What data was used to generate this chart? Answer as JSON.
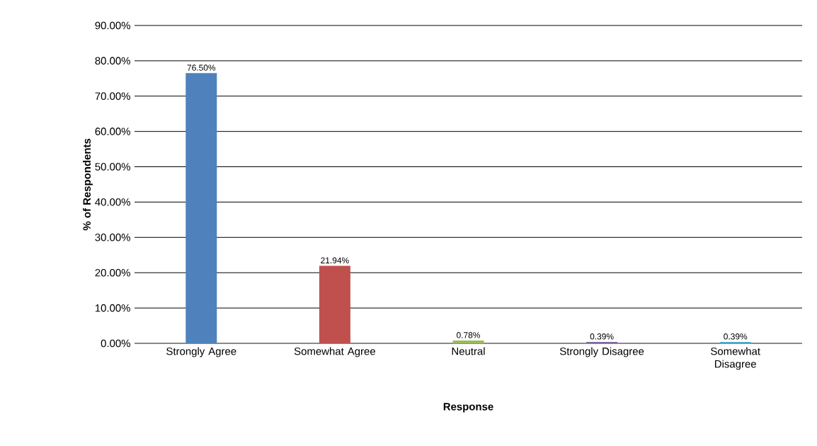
{
  "chart_data": {
    "type": "bar",
    "xlabel": "Response",
    "ylabel": "% of Respondents",
    "categories": [
      "Strongly Agree",
      "Somewhat Agree",
      "Neutral",
      "Strongly Disagree",
      "Somewhat Disagree"
    ],
    "values": [
      76.5,
      21.94,
      0.78,
      0.39,
      0.39
    ],
    "colors": [
      "#4f81bd",
      "#c0504d",
      "#9bbb59",
      "#8064a2",
      "#4bacc6"
    ],
    "value_labels": [
      "76.50%",
      "21.94%",
      "0.78%",
      "0.39%",
      "0.39%"
    ],
    "ylim": [
      0,
      90
    ],
    "yticks": [
      {
        "value": 0,
        "label": "0.00%"
      },
      {
        "value": 10,
        "label": "10.00%"
      },
      {
        "value": 20,
        "label": "20.00%"
      },
      {
        "value": 30,
        "label": "30.00%"
      },
      {
        "value": 40,
        "label": "40.00%"
      },
      {
        "value": 50,
        "label": "50.00%"
      },
      {
        "value": 60,
        "label": "60.00%"
      },
      {
        "value": 70,
        "label": "70.00%"
      },
      {
        "value": 80,
        "label": "80.00%"
      },
      {
        "value": 90,
        "label": "90.00%"
      }
    ],
    "grid": "y"
  }
}
